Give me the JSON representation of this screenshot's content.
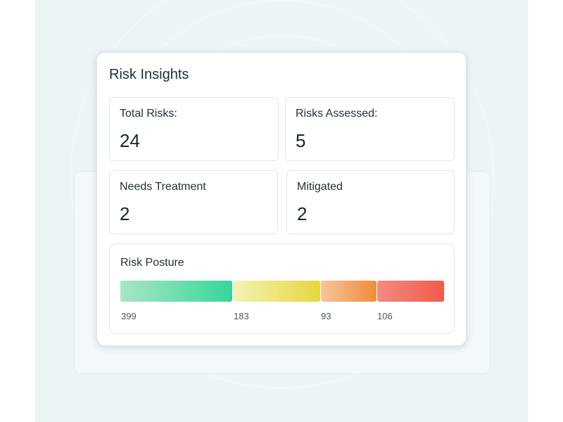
{
  "card": {
    "title": "Risk Insights"
  },
  "stats": [
    {
      "label": "Total Risks:",
      "value": "24"
    },
    {
      "label": "Risks Assessed:",
      "value": "5"
    },
    {
      "label": "Needs Treatment",
      "value": "2"
    },
    {
      "label": "Mitigated",
      "value": "2"
    }
  ],
  "posture": {
    "label": "Risk Posture",
    "segments": [
      {
        "value": "399",
        "color_start": "#a8e6c6",
        "color_end": "#36d69a"
      },
      {
        "value": "183",
        "color_start": "#f2f3b4",
        "color_end": "#e5d73e"
      },
      {
        "value": "93",
        "color_start": "#f6c59a",
        "color_end": "#ef8d3a"
      },
      {
        "value": "106",
        "color_start": "#f28a82",
        "color_end": "#f25a4a"
      }
    ]
  }
}
